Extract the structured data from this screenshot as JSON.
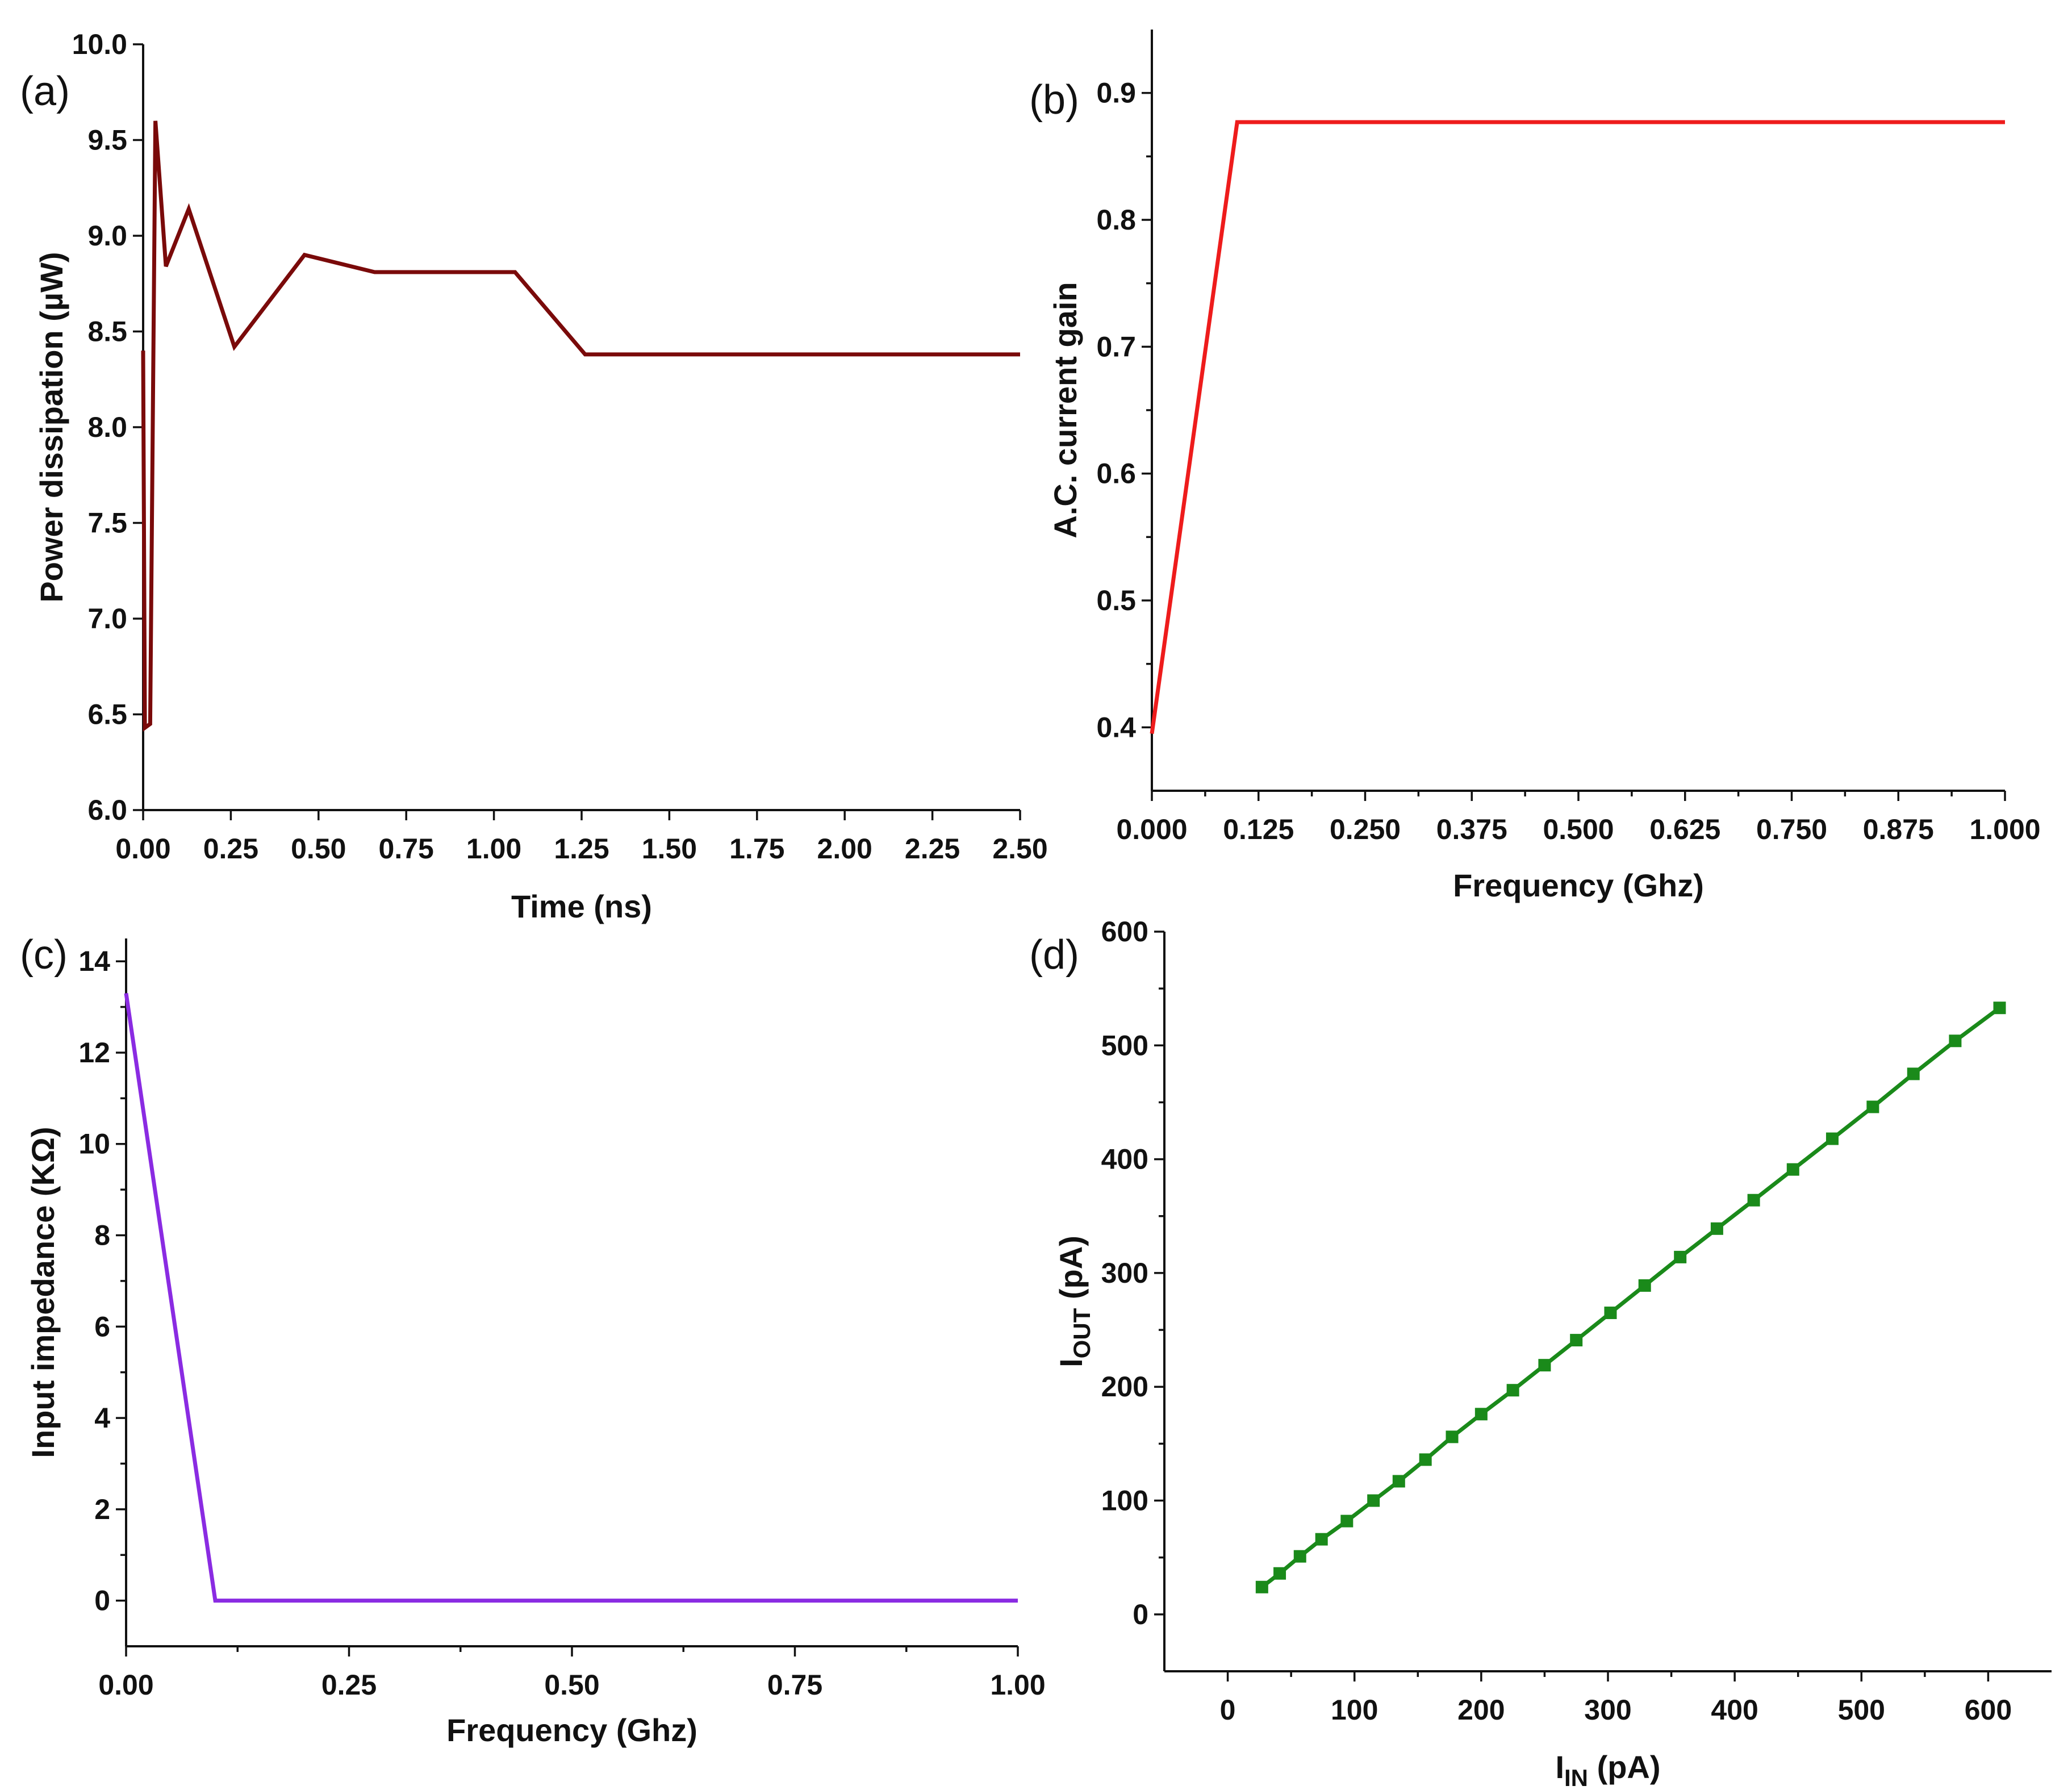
{
  "chart_data": [
    {
      "id": "a",
      "type": "line",
      "panel_label": "(a)",
      "xlabel": "Time (ns)",
      "ylabel": "Power dissipation (µW)",
      "xlim": [
        0,
        2.5
      ],
      "ylim": [
        6.0,
        10.0
      ],
      "xticks": [
        "0.00",
        "0.25",
        "0.50",
        "0.75",
        "1.00",
        "1.25",
        "1.50",
        "1.75",
        "2.00",
        "2.25",
        "2.50"
      ],
      "yticks": [
        "6.0",
        "6.5",
        "7.0",
        "7.5",
        "8.0",
        "8.5",
        "9.0",
        "9.5",
        "10.0"
      ],
      "color": "#7a0a0a",
      "series": [
        {
          "x": [
            0.0,
            0.005,
            0.02,
            0.035,
            0.065,
            0.13,
            0.26,
            0.46,
            0.66,
            1.06,
            1.26,
            2.5
          ],
          "y": [
            8.4,
            6.43,
            6.45,
            9.6,
            8.84,
            9.14,
            8.42,
            8.9,
            8.81,
            8.81,
            8.38,
            8.38
          ]
        }
      ]
    },
    {
      "id": "b",
      "type": "line",
      "panel_label": "(b)",
      "xlabel": "Frequency (Ghz)",
      "ylabel": "A.C. current gain",
      "xlim": [
        0,
        1.0
      ],
      "ylim": [
        0.35,
        0.95
      ],
      "xticks": [
        "0.000",
        "0.125",
        "0.250",
        "0.375",
        "0.500",
        "0.625",
        "0.750",
        "0.875",
        "1.000"
      ],
      "yticks": [
        "0.4",
        "0.5",
        "0.6",
        "0.7",
        "0.8",
        "0.9"
      ],
      "color": "#ee1c1c",
      "series": [
        {
          "x": [
            0.0,
            0.1,
            1.0
          ],
          "y": [
            0.395,
            0.877,
            0.877
          ]
        }
      ]
    },
    {
      "id": "c",
      "type": "line",
      "panel_label": "(c)",
      "xlabel": "Frequency (Ghz)",
      "ylabel": "Input impedance (KΩ)",
      "xlim": [
        0,
        1.0
      ],
      "ylim": [
        -1,
        14.5
      ],
      "xticks": [
        "0.00",
        "0.25",
        "0.50",
        "0.75",
        "1.00"
      ],
      "yticks": [
        "0",
        "2",
        "4",
        "6",
        "8",
        "10",
        "12",
        "14"
      ],
      "color": "#8a2be2",
      "series": [
        {
          "x": [
            0.0,
            0.1,
            1.0
          ],
          "y": [
            13.3,
            0.0,
            0.0
          ]
        }
      ]
    },
    {
      "id": "d",
      "type": "line",
      "panel_label": "(d)",
      "xlabel_main": "I",
      "xlabel_sub": "IN",
      "xlabel_unit": " (pA)",
      "ylabel_main": "I",
      "ylabel_sub": "OUT",
      "ylabel_unit": " (pA)",
      "xlim": [
        -50,
        650
      ],
      "ylim": [
        -50,
        600
      ],
      "xticks": [
        "0",
        "100",
        "200",
        "300",
        "400",
        "500",
        "600"
      ],
      "yticks": [
        "0",
        "100",
        "200",
        "300",
        "400",
        "500",
        "600"
      ],
      "color": "#1a8a1a",
      "markers": "square",
      "series": [
        {
          "x": [
            27,
            41,
            57,
            74,
            94,
            115,
            135,
            156,
            177,
            200,
            225,
            250,
            275,
            302,
            329,
            357,
            386,
            415,
            446,
            477,
            509,
            541,
            574,
            609
          ],
          "y": [
            24,
            36,
            51,
            66,
            82,
            100,
            117,
            136,
            156,
            176,
            197,
            219,
            241,
            265,
            289,
            314,
            339,
            364,
            391,
            418,
            446,
            475,
            504,
            533
          ]
        }
      ]
    }
  ]
}
